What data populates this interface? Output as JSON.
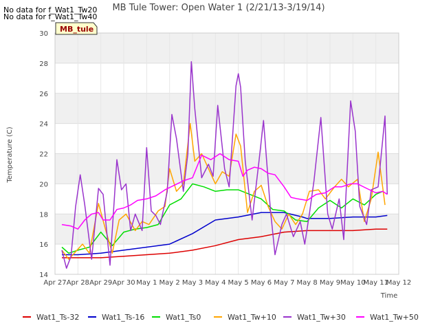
{
  "notes": [
    "No data for f_Wat1_Tw20",
    "No data for f_Wat1_Tw40"
  ],
  "tag_label": "MB_tule",
  "chart_data": {
    "type": "line",
    "title": "MB Tule Tower: Open Water 1 (2/21/13-3/19/14)",
    "xlabel": "Time",
    "ylabel": "Temperature (C)",
    "ylim": [
      14,
      30
    ],
    "yticks": [
      14,
      16,
      18,
      20,
      22,
      24,
      26,
      28,
      30
    ],
    "xlim": [
      0,
      15
    ],
    "xticks": [
      "Apr 27",
      "Apr 28",
      "Apr 29",
      "Apr 30",
      "May 1",
      "May 2",
      "May 3",
      "May 4",
      "May 5",
      "May 6",
      "May 7",
      "May 8",
      "May 9",
      "May 10",
      "May 11",
      "May 12"
    ],
    "grid": true,
    "legend_position": "bottom",
    "series": [
      {
        "name": "Wat1_Ts-32",
        "color": "#dd0000",
        "x": [
          0.3,
          1,
          2,
          3,
          4,
          5,
          6,
          7,
          8,
          9,
          10,
          11,
          12,
          13,
          14,
          14.5
        ],
        "y": [
          15.1,
          15.1,
          15.1,
          15.2,
          15.3,
          15.4,
          15.6,
          15.9,
          16.3,
          16.5,
          16.8,
          16.9,
          16.9,
          16.9,
          17.0,
          17.0
        ]
      },
      {
        "name": "Wat1_Ts-16",
        "color": "#0000cc",
        "x": [
          0.3,
          1,
          2,
          3,
          4,
          5,
          6,
          7,
          8,
          9,
          10,
          10.8,
          11,
          12,
          13,
          14,
          14.5
        ],
        "y": [
          15.3,
          15.3,
          15.4,
          15.6,
          15.8,
          16.0,
          16.7,
          17.6,
          17.8,
          18.1,
          18.1,
          17.8,
          17.7,
          17.7,
          17.8,
          17.8,
          17.9
        ]
      },
      {
        "name": "Wat1_Ts0",
        "color": "#00dd00",
        "x": [
          0.3,
          0.6,
          1,
          1.5,
          2,
          2.5,
          3,
          3.5,
          4,
          4.5,
          5,
          5.5,
          6,
          6.5,
          7,
          7.5,
          8,
          8.5,
          9,
          9.5,
          10,
          10.5,
          11,
          11.5,
          12,
          12.5,
          13,
          13.5,
          14,
          14.3
        ],
        "y": [
          15.8,
          15.4,
          15.6,
          15.8,
          16.8,
          15.9,
          16.8,
          17.0,
          17.1,
          17.3,
          18.6,
          19.0,
          20.0,
          19.8,
          19.5,
          19.6,
          19.6,
          19.3,
          19.0,
          18.3,
          18.2,
          17.6,
          17.5,
          18.4,
          18.9,
          18.4,
          19.0,
          18.6,
          19.3,
          19.5
        ]
      },
      {
        "name": "Wat1_Tw+10",
        "color": "#ffa500",
        "x": [
          0.3,
          0.6,
          0.9,
          1.2,
          1.5,
          1.9,
          2.2,
          2.5,
          2.8,
          3.1,
          3.5,
          3.8,
          4.1,
          4.5,
          4.8,
          5.0,
          5.3,
          5.6,
          5.9,
          6.1,
          6.4,
          6.7,
          7.0,
          7.3,
          7.6,
          7.9,
          8.1,
          8.4,
          8.7,
          9.0,
          9.3,
          9.6,
          9.9,
          10.2,
          10.5,
          10.8,
          11.1,
          11.5,
          11.8,
          12.2,
          12.5,
          12.8,
          13.2,
          13.5,
          13.8,
          14.1,
          14.4
        ],
        "y": [
          15.6,
          15.0,
          15.5,
          16.0,
          15.4,
          18.7,
          17.0,
          15.4,
          17.6,
          18.0,
          16.9,
          17.5,
          17.3,
          18.2,
          18.5,
          21.0,
          19.5,
          20.0,
          24.0,
          21.5,
          22.0,
          21.0,
          20.0,
          20.8,
          20.5,
          23.3,
          22.5,
          18.1,
          19.5,
          19.9,
          18.5,
          17.5,
          17.0,
          18.0,
          17.3,
          18.0,
          19.5,
          19.6,
          19.0,
          19.8,
          20.3,
          19.8,
          20.3,
          17.5,
          19.0,
          22.1,
          18.6
        ]
      },
      {
        "name": "Wat1_Tw+30",
        "color": "#9933cc",
        "x": [
          0.3,
          0.5,
          0.7,
          0.9,
          1.1,
          1.3,
          1.6,
          1.9,
          2.1,
          2.4,
          2.7,
          2.9,
          3.1,
          3.3,
          3.5,
          3.8,
          4.0,
          4.2,
          4.4,
          4.6,
          4.9,
          5.1,
          5.3,
          5.6,
          5.8,
          5.95,
          6.1,
          6.4,
          6.7,
          6.9,
          7.1,
          7.4,
          7.6,
          7.9,
          8.0,
          8.1,
          8.3,
          8.6,
          8.9,
          9.1,
          9.4,
          9.6,
          9.9,
          10.1,
          10.4,
          10.7,
          10.9,
          11.1,
          11.3,
          11.6,
          11.9,
          12.1,
          12.4,
          12.6,
          12.9,
          13.1,
          13.3,
          13.6,
          13.8,
          14.1,
          14.4,
          14.5
        ],
        "y": [
          15.6,
          14.4,
          15.2,
          18.5,
          20.6,
          18.6,
          15.0,
          19.7,
          19.3,
          14.6,
          21.6,
          19.6,
          20.0,
          16.9,
          18.0,
          16.9,
          22.4,
          18.2,
          17.9,
          17.3,
          19.5,
          24.6,
          23.0,
          19.5,
          22.0,
          28.1,
          25.0,
          20.4,
          21.3,
          20.5,
          25.2,
          21.0,
          19.8,
          26.5,
          27.3,
          26.4,
          21.5,
          17.6,
          21.5,
          24.2,
          18.3,
          15.3,
          17.3,
          18.0,
          16.5,
          17.5,
          16.0,
          18.0,
          20.2,
          24.4,
          18.0,
          17.0,
          19.0,
          16.3,
          25.5,
          23.5,
          18.5,
          17.3,
          19.6,
          19.8,
          24.5,
          19.3
        ]
      },
      {
        "name": "Wat1_Tw+50",
        "color": "#ff00ff",
        "x": [
          0.3,
          0.7,
          1.0,
          1.3,
          1.6,
          1.9,
          2.1,
          2.4,
          2.7,
          3.0,
          3.3,
          3.6,
          4.0,
          4.4,
          4.8,
          5.2,
          5.6,
          6.0,
          6.4,
          6.8,
          7.2,
          7.6,
          8.0,
          8.2,
          8.4,
          8.7,
          9.0,
          9.3,
          9.6,
          10.0,
          10.3,
          10.6,
          11.0,
          11.4,
          11.8,
          12.2,
          12.5,
          12.9,
          13.2,
          13.6,
          14.0,
          14.3,
          14.5
        ],
        "y": [
          17.3,
          17.2,
          17.0,
          17.6,
          18.0,
          18.1,
          17.6,
          17.6,
          18.3,
          18.4,
          18.6,
          18.9,
          19.0,
          19.2,
          19.6,
          19.9,
          20.2,
          20.4,
          21.9,
          21.6,
          22.0,
          21.6,
          21.5,
          20.5,
          20.9,
          21.1,
          21.0,
          20.7,
          20.6,
          19.8,
          19.1,
          19.0,
          18.9,
          19.3,
          19.4,
          19.8,
          19.8,
          20.0,
          20.0,
          19.7,
          19.4,
          19.5,
          19.3
        ]
      }
    ]
  }
}
